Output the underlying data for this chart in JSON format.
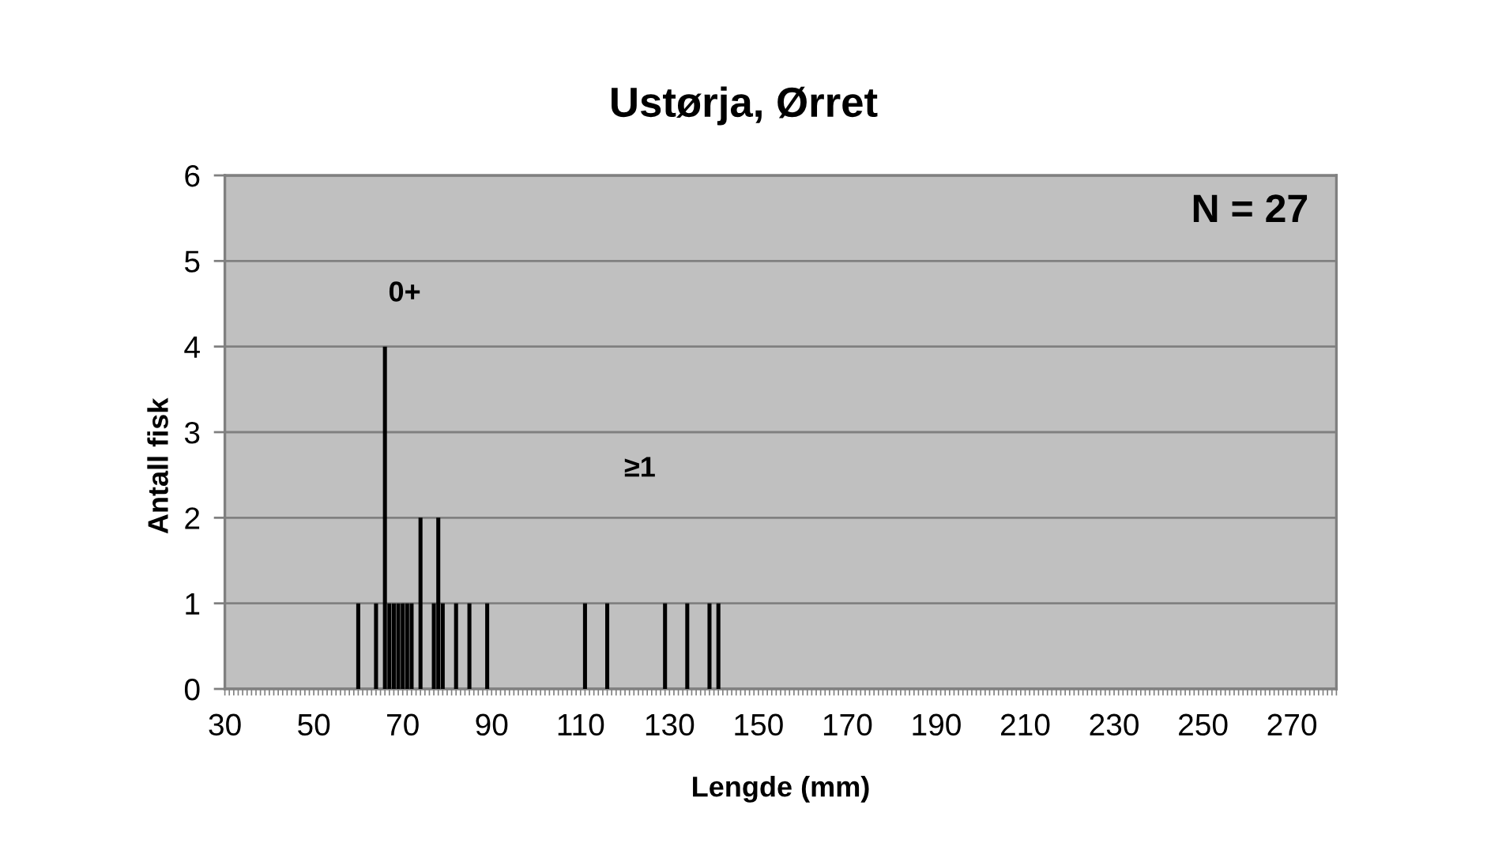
{
  "chart_data": {
    "type": "bar",
    "title": "Ustørja, Ørret",
    "xlabel": "Lengde (mm)",
    "ylabel": "Antall fisk",
    "x": [
      60,
      64,
      66,
      67,
      68,
      69,
      70,
      71,
      72,
      74,
      77,
      78,
      79,
      82,
      85,
      89,
      111,
      116,
      129,
      134,
      139,
      141
    ],
    "values": [
      1,
      1,
      4,
      1,
      1,
      1,
      1,
      1,
      1,
      2,
      1,
      2,
      1,
      1,
      1,
      1,
      1,
      1,
      1,
      1,
      1,
      1
    ],
    "color": "#000000",
    "xlim": [
      30,
      280
    ],
    "xticks": [
      30,
      {
        "value": 31,
        "label": null
      },
      {
        "value": 32,
        "label": null
      },
      {
        "value": 33,
        "label": null
      },
      {
        "value": 34,
        "label": null
      },
      {
        "value": 35,
        "label": null
      },
      {
        "value": 36,
        "label": null
      },
      {
        "value": 37,
        "label": null
      },
      {
        "value": 38,
        "label": null
      },
      {
        "value": 39,
        "label": null
      },
      {
        "value": 40,
        "label": null
      },
      {
        "value": 41,
        "label": null
      },
      {
        "value": 42,
        "label": null
      },
      {
        "value": 43,
        "label": null
      },
      {
        "value": 44,
        "label": null
      },
      {
        "value": 45,
        "label": null
      },
      {
        "value": 46,
        "label": null
      },
      {
        "value": 47,
        "label": null
      },
      {
        "value": 48,
        "label": null
      },
      {
        "value": 49,
        "label": null
      },
      50,
      {
        "value": 51,
        "label": null
      },
      {
        "value": 52,
        "label": null
      },
      {
        "value": 53,
        "label": null
      },
      {
        "value": 54,
        "label": null
      },
      {
        "value": 55,
        "label": null
      },
      {
        "value": 56,
        "label": null
      },
      {
        "value": 57,
        "label": null
      },
      {
        "value": 58,
        "label": null
      },
      {
        "value": 59,
        "label": null
      },
      {
        "value": 60,
        "label": null
      },
      {
        "value": 61,
        "label": null
      },
      {
        "value": 62,
        "label": null
      },
      {
        "value": 63,
        "label": null
      },
      {
        "value": 64,
        "label": null
      },
      {
        "value": 65,
        "label": null
      },
      {
        "value": 66,
        "label": null
      },
      {
        "value": 67,
        "label": null
      },
      {
        "value": 68,
        "label": null
      },
      {
        "value": 69,
        "label": null
      },
      70,
      {
        "value": 71,
        "label": null
      },
      {
        "value": 72,
        "label": null
      },
      {
        "value": 73,
        "label": null
      },
      {
        "value": 74,
        "label": null
      },
      {
        "value": 75,
        "label": null
      },
      {
        "value": 76,
        "label": null
      },
      {
        "value": 77,
        "label": null
      },
      {
        "value": 78,
        "label": null
      },
      {
        "value": 79,
        "label": null
      },
      {
        "value": 80,
        "label": null
      },
      {
        "value": 81,
        "label": null
      },
      {
        "value": 82,
        "label": null
      },
      {
        "value": 83,
        "label": null
      },
      {
        "value": 84,
        "label": null
      },
      {
        "value": 85,
        "label": null
      },
      {
        "value": 86,
        "label": null
      },
      {
        "value": 87,
        "label": null
      },
      {
        "value": 88,
        "label": null
      },
      {
        "value": 89,
        "label": null
      },
      90,
      {
        "value": 91,
        "label": null
      },
      {
        "value": 92,
        "label": null
      },
      {
        "value": 93,
        "label": null
      },
      {
        "value": 94,
        "label": null
      },
      {
        "value": 95,
        "label": null
      },
      {
        "value": 96,
        "label": null
      },
      {
        "value": 97,
        "label": null
      },
      {
        "value": 98,
        "label": null
      },
      {
        "value": 99,
        "label": null
      },
      {
        "value": 100,
        "label": null
      },
      {
        "value": 101,
        "label": null
      },
      {
        "value": 102,
        "label": null
      },
      {
        "value": 103,
        "label": null
      },
      {
        "value": 104,
        "label": null
      },
      {
        "value": 105,
        "label": null
      },
      {
        "value": 106,
        "label": null
      },
      {
        "value": 107,
        "label": null
      },
      {
        "value": 108,
        "label": null
      },
      {
        "value": 109,
        "label": null
      },
      110,
      {
        "value": 111,
        "label": null
      },
      {
        "value": 112,
        "label": null
      },
      {
        "value": 113,
        "label": null
      },
      {
        "value": 114,
        "label": null
      },
      {
        "value": 115,
        "label": null
      },
      {
        "value": 116,
        "label": null
      },
      {
        "value": 117,
        "label": null
      },
      {
        "value": 118,
        "label": null
      },
      {
        "value": 119,
        "label": null
      },
      {
        "value": 120,
        "label": null
      },
      {
        "value": 121,
        "label": null
      },
      {
        "value": 122,
        "label": null
      },
      {
        "value": 123,
        "label": null
      },
      {
        "value": 124,
        "label": null
      },
      {
        "value": 125,
        "label": null
      },
      {
        "value": 126,
        "label": null
      },
      {
        "value": 127,
        "label": null
      },
      {
        "value": 128,
        "label": null
      },
      {
        "value": 129,
        "label": null
      },
      130,
      {
        "value": 131,
        "label": null
      },
      {
        "value": 132,
        "label": null
      },
      {
        "value": 133,
        "label": null
      },
      {
        "value": 134,
        "label": null
      },
      {
        "value": 135,
        "label": null
      },
      {
        "value": 136,
        "label": null
      },
      {
        "value": 137,
        "label": null
      },
      {
        "value": 138,
        "label": null
      },
      {
        "value": 139,
        "label": null
      },
      {
        "value": 140,
        "label": null
      },
      {
        "value": 141,
        "label": null
      },
      {
        "value": 142,
        "label": null
      },
      {
        "value": 143,
        "label": null
      },
      {
        "value": 144,
        "label": null
      },
      {
        "value": 145,
        "label": null
      },
      {
        "value": 146,
        "label": null
      },
      {
        "value": 147,
        "label": null
      },
      {
        "value": 148,
        "label": null
      },
      {
        "value": 149,
        "label": null
      },
      150,
      {
        "value": 151,
        "label": null
      },
      {
        "value": 152,
        "label": null
      },
      {
        "value": 153,
        "label": null
      },
      {
        "value": 154,
        "label": null
      },
      {
        "value": 155,
        "label": null
      },
      {
        "value": 156,
        "label": null
      },
      {
        "value": 157,
        "label": null
      },
      {
        "value": 158,
        "label": null
      },
      {
        "value": 159,
        "label": null
      },
      {
        "value": 160,
        "label": null
      },
      {
        "value": 161,
        "label": null
      },
      {
        "value": 162,
        "label": null
      },
      {
        "value": 163,
        "label": null
      },
      {
        "value": 164,
        "label": null
      },
      {
        "value": 165,
        "label": null
      },
      {
        "value": 166,
        "label": null
      },
      {
        "value": 167,
        "label": null
      },
      {
        "value": 168,
        "label": null
      },
      {
        "value": 169,
        "label": null
      },
      170,
      {
        "value": 171,
        "label": null
      },
      {
        "value": 172,
        "label": null
      },
      {
        "value": 173,
        "label": null
      },
      {
        "value": 174,
        "label": null
      },
      {
        "value": 175,
        "label": null
      },
      {
        "value": 176,
        "label": null
      },
      {
        "value": 177,
        "label": null
      },
      {
        "value": 178,
        "label": null
      },
      {
        "value": 179,
        "label": null
      },
      {
        "value": 180,
        "label": null
      },
      {
        "value": 181,
        "label": null
      },
      {
        "value": 182,
        "label": null
      },
      {
        "value": 183,
        "label": null
      },
      {
        "value": 184,
        "label": null
      },
      {
        "value": 185,
        "label": null
      },
      {
        "value": 186,
        "label": null
      },
      {
        "value": 187,
        "label": null
      },
      {
        "value": 188,
        "label": null
      },
      {
        "value": 189,
        "label": null
      },
      190,
      {
        "value": 191,
        "label": null
      },
      {
        "value": 192,
        "label": null
      },
      {
        "value": 193,
        "label": null
      },
      {
        "value": 194,
        "label": null
      },
      {
        "value": 195,
        "label": null
      },
      {
        "value": 196,
        "label": null
      },
      {
        "value": 197,
        "label": null
      },
      {
        "value": 198,
        "label": null
      },
      {
        "value": 199,
        "label": null
      },
      {
        "value": 200,
        "label": null
      },
      {
        "value": 201,
        "label": null
      },
      {
        "value": 202,
        "label": null
      },
      {
        "value": 203,
        "label": null
      },
      {
        "value": 204,
        "label": null
      },
      {
        "value": 205,
        "label": null
      },
      {
        "value": 206,
        "label": null
      },
      {
        "value": 207,
        "label": null
      },
      {
        "value": 208,
        "label": null
      },
      {
        "value": 209,
        "label": null
      },
      210,
      {
        "value": 211,
        "label": null
      },
      {
        "value": 212,
        "label": null
      },
      {
        "value": 213,
        "label": null
      },
      {
        "value": 214,
        "label": null
      },
      {
        "value": 215,
        "label": null
      },
      {
        "value": 216,
        "label": null
      },
      {
        "value": 217,
        "label": null
      },
      {
        "value": 218,
        "label": null
      },
      {
        "value": 219,
        "label": null
      },
      {
        "value": 220,
        "label": null
      },
      {
        "value": 221,
        "label": null
      },
      {
        "value": 222,
        "label": null
      },
      {
        "value": 223,
        "label": null
      },
      {
        "value": 224,
        "label": null
      },
      {
        "value": 225,
        "label": null
      },
      {
        "value": 226,
        "label": null
      },
      {
        "value": 227,
        "label": null
      },
      {
        "value": 228,
        "label": null
      },
      {
        "value": 229,
        "label": null
      },
      230,
      {
        "value": 231,
        "label": null
      },
      {
        "value": 232,
        "label": null
      },
      {
        "value": 233,
        "label": null
      },
      {
        "value": 234,
        "label": null
      },
      {
        "value": 235,
        "label": null
      },
      {
        "value": 236,
        "label": null
      },
      {
        "value": 237,
        "label": null
      },
      {
        "value": 238,
        "label": null
      },
      {
        "value": 239,
        "label": null
      },
      {
        "value": 240,
        "label": null
      },
      {
        "value": 241,
        "label": null
      },
      {
        "value": 242,
        "label": null
      },
      {
        "value": 243,
        "label": null
      },
      {
        "value": 244,
        "label": null
      },
      {
        "value": 245,
        "label": null
      },
      {
        "value": 246,
        "label": null
      },
      {
        "value": 247,
        "label": null
      },
      {
        "value": 248,
        "label": null
      },
      {
        "value": 249,
        "label": null
      },
      250,
      {
        "value": 251,
        "label": null
      },
      {
        "value": 252,
        "label": null
      },
      {
        "value": 253,
        "label": null
      },
      {
        "value": 254,
        "label": null
      },
      {
        "value": 255,
        "label": null
      },
      {
        "value": 256,
        "label": null
      },
      {
        "value": 257,
        "label": null
      },
      {
        "value": 258,
        "label": null
      },
      {
        "value": 259,
        "label": null
      },
      {
        "value": 260,
        "label": null
      },
      {
        "value": 261,
        "label": null
      },
      {
        "value": 262,
        "label": null
      },
      {
        "value": 263,
        "label": null
      },
      {
        "value": 264,
        "label": null
      },
      {
        "value": 265,
        "label": null
      },
      {
        "value": 266,
        "label": null
      },
      {
        "value": 267,
        "label": null
      },
      {
        "value": 268,
        "label": null
      },
      {
        "value": 269,
        "label": null
      },
      270,
      {
        "value": 271,
        "label": null
      },
      {
        "value": 272,
        "label": null
      },
      {
        "value": 273,
        "label": null
      },
      {
        "value": 274,
        "label": null
      },
      {
        "value": 275,
        "label": null
      },
      {
        "value": 276,
        "label": null
      },
      {
        "value": 277,
        "label": null
      },
      {
        "value": 278,
        "label": null
      },
      {
        "value": 279,
        "label": null
      },
      {
        "value": 280,
        "label": null
      }
    ],
    "ylim": [
      0,
      6
    ],
    "yticks": [
      0,
      1,
      2,
      3,
      4,
      5,
      6
    ],
    "grid": "y",
    "annotations": [
      "0+",
      "≥1",
      "N = 27"
    ]
  }
}
